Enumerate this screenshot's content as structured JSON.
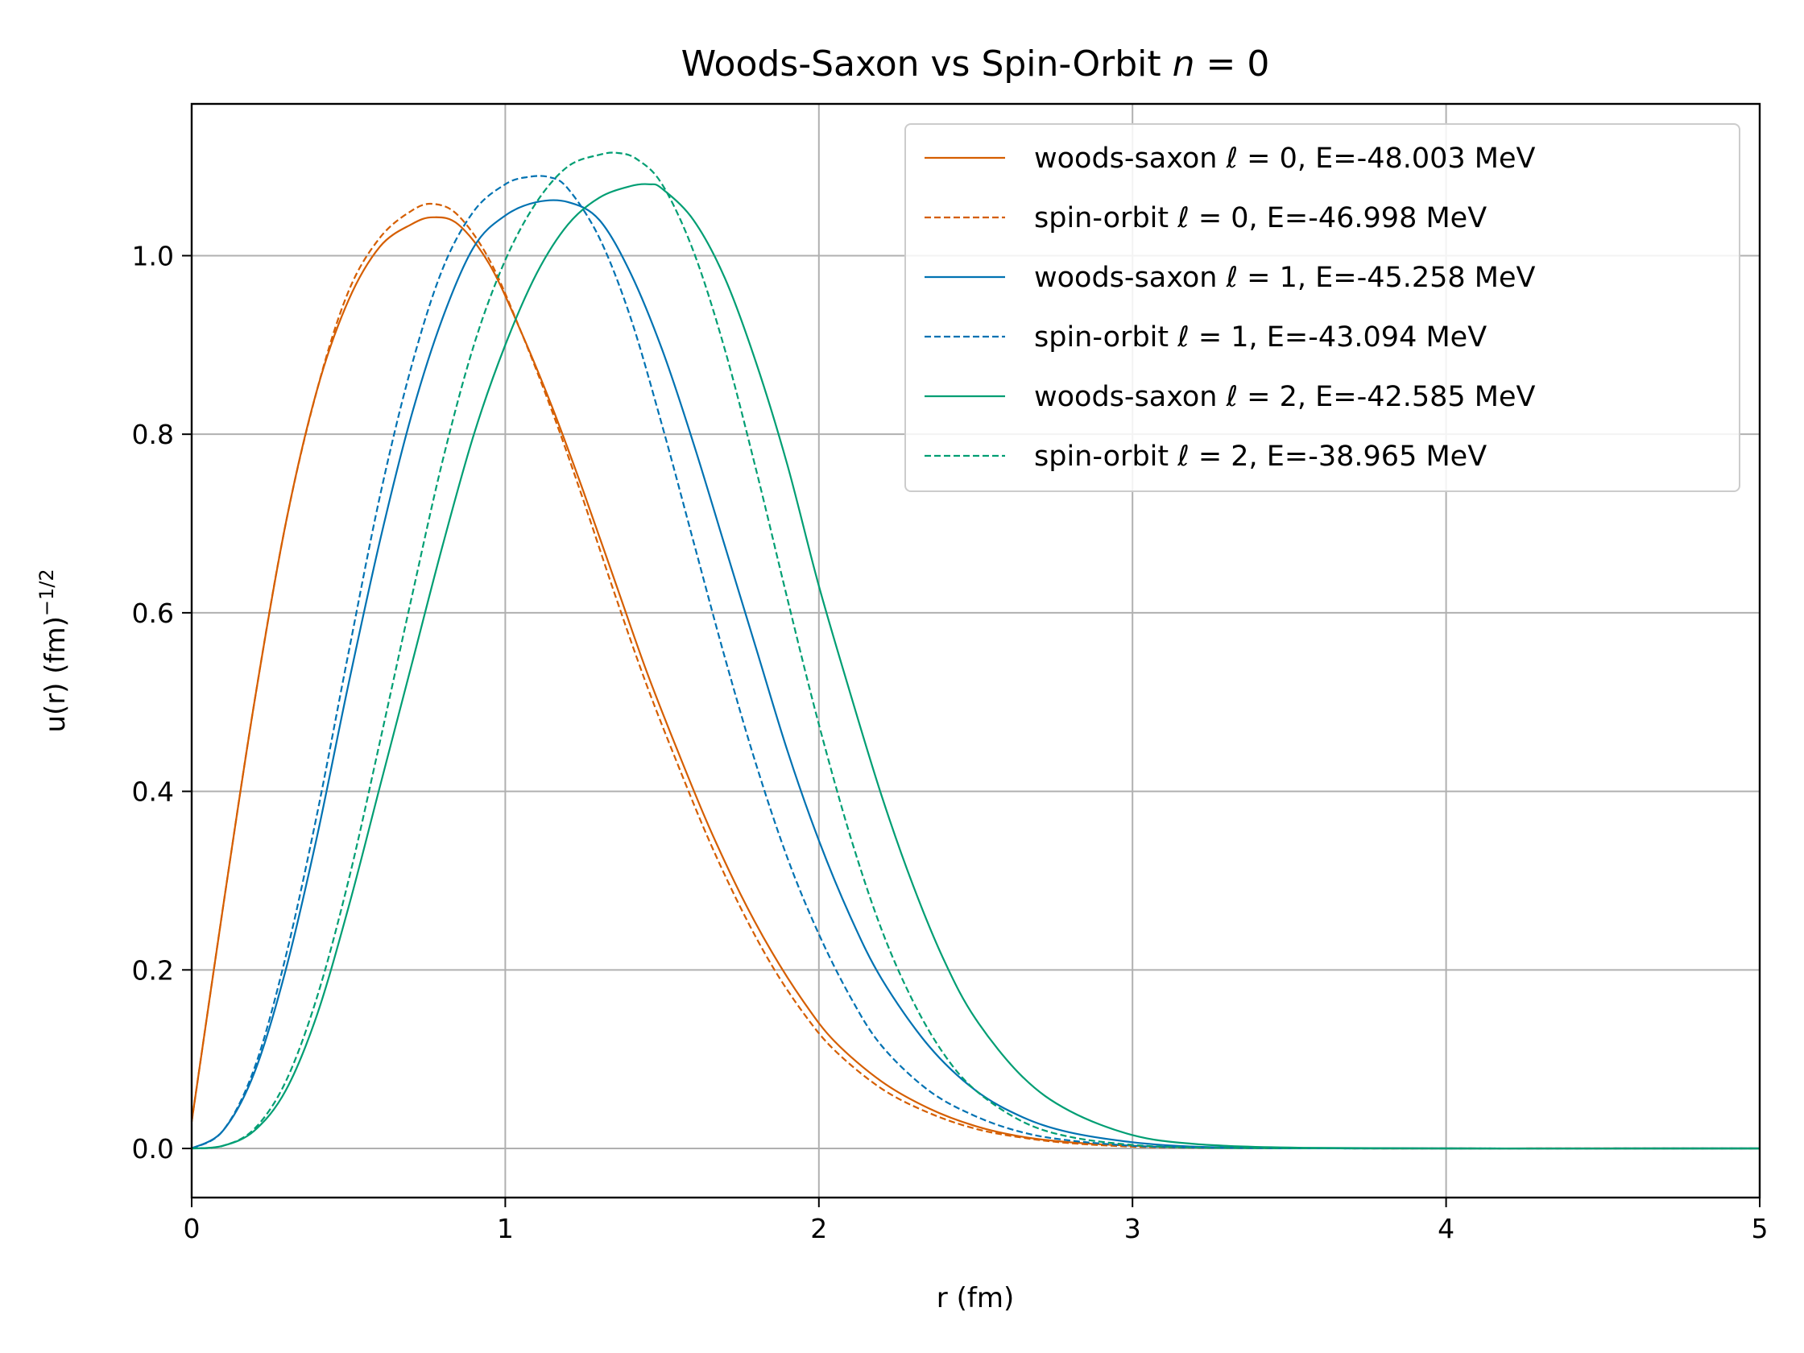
{
  "chart_data": {
    "type": "line",
    "title": "Woods-Saxon vs Spin-Orbit n = 0",
    "title_parts": {
      "prefix": "Woods-Saxon vs Spin-Orbit ",
      "var": "n",
      "suffix": " = 0"
    },
    "xlabel": "r (fm)",
    "ylabel": "u(r) (fm)",
    "ylabel_sup": "−1/2",
    "xlim": [
      0,
      5
    ],
    "ylim": [
      -0.055,
      1.17
    ],
    "xticks": [
      0,
      1,
      2,
      3,
      4,
      5
    ],
    "xtick_labels": [
      "0",
      "1",
      "2",
      "3",
      "4",
      "5"
    ],
    "yticks": [
      0.0,
      0.2,
      0.4,
      0.6,
      0.8,
      1.0
    ],
    "ytick_labels": [
      "0.0",
      "0.2",
      "0.4",
      "0.6",
      "0.8",
      "1.0"
    ],
    "grid": true,
    "legend_position": "top-right",
    "series": [
      {
        "name": "woods-saxon ℓ = 0, E=-48.003 MeV",
        "legend_prefix": "woods-saxon ",
        "legend_suffix": " = 0, E=-48.003 MeV",
        "color": "#d55e00",
        "dashed": false,
        "x": [
          0,
          0.1,
          0.2,
          0.3,
          0.4,
          0.5,
          0.6,
          0.7,
          0.77,
          0.85,
          0.95,
          1.05,
          1.15,
          1.25,
          1.35,
          1.45,
          1.55,
          1.65,
          1.75,
          1.85,
          1.95,
          2.05,
          2.2,
          2.35,
          2.5,
          2.65,
          2.8,
          3.0,
          3.2,
          3.5,
          4.0,
          4.5,
          5.0
        ],
        "y": [
          0.03,
          0.27,
          0.5,
          0.7,
          0.85,
          0.95,
          1.01,
          1.035,
          1.043,
          1.035,
          0.99,
          0.915,
          0.83,
          0.735,
          0.635,
          0.535,
          0.445,
          0.36,
          0.285,
          0.22,
          0.165,
          0.12,
          0.075,
          0.045,
          0.025,
          0.013,
          0.007,
          0.003,
          0.001,
          0.0003,
          0.0,
          0.0,
          0.0
        ]
      },
      {
        "name": "spin-orbit ℓ = 0, E=-46.998 MeV",
        "legend_prefix": "spin-orbit ",
        "legend_suffix": " = 0, E=-46.998 MeV",
        "color": "#d55e00",
        "dashed": true,
        "x": [
          0,
          0.1,
          0.2,
          0.3,
          0.4,
          0.5,
          0.6,
          0.7,
          0.77,
          0.85,
          0.95,
          1.05,
          1.15,
          1.25,
          1.35,
          1.45,
          1.55,
          1.65,
          1.75,
          1.85,
          1.95,
          2.05,
          2.2,
          2.35,
          2.5,
          2.65,
          2.8,
          3.0,
          3.2,
          3.5,
          4.0,
          4.5,
          5.0
        ],
        "y": [
          0.03,
          0.27,
          0.5,
          0.7,
          0.85,
          0.96,
          1.02,
          1.05,
          1.058,
          1.045,
          0.995,
          0.915,
          0.825,
          0.725,
          0.62,
          0.52,
          0.43,
          0.345,
          0.27,
          0.205,
          0.152,
          0.11,
          0.067,
          0.04,
          0.022,
          0.012,
          0.006,
          0.002,
          0.0008,
          0.0002,
          0.0,
          0.0,
          0.0
        ]
      },
      {
        "name": "woods-saxon ℓ = 1, E=-45.258 MeV",
        "legend_prefix": "woods-saxon ",
        "legend_suffix": " = 1, E=-45.258 MeV",
        "color": "#0072b2",
        "dashed": false,
        "x": [
          0,
          0.1,
          0.2,
          0.3,
          0.4,
          0.5,
          0.6,
          0.7,
          0.8,
          0.9,
          1.0,
          1.1,
          1.2,
          1.3,
          1.4,
          1.5,
          1.6,
          1.7,
          1.8,
          1.9,
          2.0,
          2.1,
          2.2,
          2.35,
          2.5,
          2.65,
          2.8,
          3.0,
          3.2,
          3.5,
          4.0,
          4.5,
          5.0
        ],
        "y": [
          0.0,
          0.02,
          0.085,
          0.2,
          0.35,
          0.52,
          0.68,
          0.82,
          0.93,
          1.01,
          1.045,
          1.06,
          1.06,
          1.04,
          0.98,
          0.895,
          0.79,
          0.675,
          0.56,
          0.445,
          0.345,
          0.26,
          0.19,
          0.115,
          0.065,
          0.035,
          0.018,
          0.007,
          0.002,
          0.0005,
          0.0,
          0.0,
          0.0
        ]
      },
      {
        "name": "spin-orbit ℓ = 1, E=-43.094 MeV",
        "legend_prefix": "spin-orbit ",
        "legend_suffix": " = 1, E=-43.094 MeV",
        "color": "#0072b2",
        "dashed": true,
        "x": [
          0,
          0.1,
          0.2,
          0.3,
          0.4,
          0.5,
          0.6,
          0.7,
          0.8,
          0.9,
          1.0,
          1.07,
          1.14,
          1.2,
          1.3,
          1.4,
          1.5,
          1.6,
          1.7,
          1.8,
          1.9,
          2.0,
          2.1,
          2.2,
          2.35,
          2.5,
          2.65,
          2.8,
          3.0,
          3.2,
          3.5,
          4.0,
          5.0
        ],
        "y": [
          0.0,
          0.02,
          0.09,
          0.215,
          0.375,
          0.555,
          0.73,
          0.875,
          0.985,
          1.05,
          1.08,
          1.088,
          1.088,
          1.075,
          1.02,
          0.93,
          0.81,
          0.68,
          0.55,
          0.43,
          0.325,
          0.24,
          0.17,
          0.115,
          0.065,
          0.036,
          0.018,
          0.009,
          0.003,
          0.001,
          0.0002,
          0.0,
          0.0
        ]
      },
      {
        "name": "woods-saxon ℓ = 2, E=-42.585 MeV",
        "legend_prefix": "woods-saxon ",
        "legend_suffix": " = 2, E=-42.585 MeV",
        "color": "#009e73",
        "dashed": false,
        "x": [
          0,
          0.1,
          0.2,
          0.3,
          0.4,
          0.5,
          0.6,
          0.7,
          0.8,
          0.9,
          1.0,
          1.1,
          1.2,
          1.3,
          1.4,
          1.46,
          1.5,
          1.6,
          1.7,
          1.8,
          1.9,
          2.0,
          2.1,
          2.2,
          2.3,
          2.4,
          2.5,
          2.65,
          2.8,
          3.0,
          3.2,
          3.5,
          4.0,
          5.0
        ],
        "y": [
          0.0,
          0.003,
          0.02,
          0.065,
          0.15,
          0.27,
          0.405,
          0.54,
          0.675,
          0.8,
          0.9,
          0.98,
          1.035,
          1.065,
          1.078,
          1.08,
          1.075,
          1.04,
          0.975,
          0.88,
          0.765,
          0.63,
          0.51,
          0.395,
          0.295,
          0.21,
          0.145,
          0.08,
          0.042,
          0.015,
          0.005,
          0.001,
          0.0,
          0.0
        ]
      },
      {
        "name": "spin-orbit ℓ = 2, E=-38.965 MeV",
        "legend_prefix": "spin-orbit ",
        "legend_suffix": " = 2, E=-38.965 MeV",
        "color": "#009e73",
        "dashed": true,
        "x": [
          0,
          0.1,
          0.2,
          0.3,
          0.4,
          0.5,
          0.6,
          0.7,
          0.8,
          0.9,
          1.0,
          1.1,
          1.2,
          1.3,
          1.36,
          1.42,
          1.5,
          1.6,
          1.7,
          1.8,
          1.9,
          2.0,
          2.1,
          2.2,
          2.3,
          2.4,
          2.5,
          2.65,
          2.8,
          3.0,
          3.2,
          3.5,
          4.0,
          5.0
        ],
        "y": [
          0.0,
          0.003,
          0.022,
          0.075,
          0.17,
          0.3,
          0.455,
          0.615,
          0.77,
          0.9,
          0.995,
          1.06,
          1.1,
          1.113,
          1.115,
          1.108,
          1.08,
          1.005,
          0.895,
          0.76,
          0.615,
          0.475,
          0.35,
          0.245,
          0.165,
          0.105,
          0.065,
          0.03,
          0.013,
          0.004,
          0.001,
          0.0002,
          0.0,
          0.0
        ]
      }
    ]
  }
}
